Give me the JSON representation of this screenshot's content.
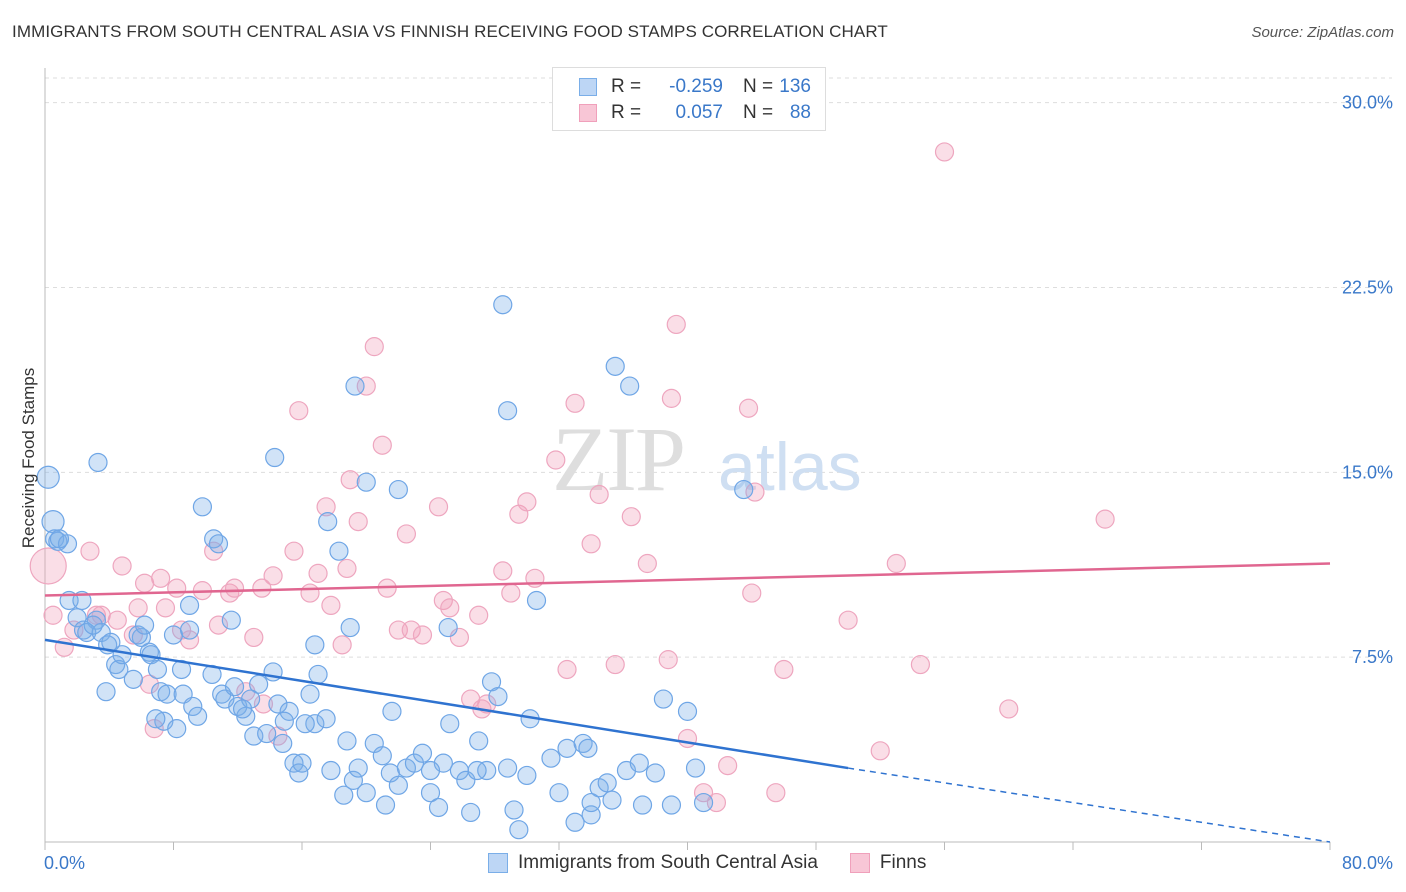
{
  "header": {
    "title": "IMMIGRANTS FROM SOUTH CENTRAL ASIA VS FINNISH RECEIVING FOOD STAMPS CORRELATION CHART",
    "source": "Source: ZipAtlas.com"
  },
  "legend": {
    "blue": {
      "r_label": "R =",
      "r_value": "-0.259",
      "n_label": "N =",
      "n_value": "136"
    },
    "pink": {
      "r_label": "R =",
      "r_value": "0.057",
      "n_label": "N =",
      "n_value": "88"
    }
  },
  "watermark": {
    "zip": "ZIP",
    "atlas": "atlas"
  },
  "colors": {
    "blue": "#7aaee8",
    "blue_line": "#2f73d0",
    "pink": "#f0a0bb",
    "pink_line": "#e06690",
    "tick_label": "#3a78c9"
  },
  "chart_data": {
    "type": "scatter",
    "title": "IMMIGRANTS FROM SOUTH CENTRAL ASIA VS FINNISH RECEIVING FOOD STAMPS CORRELATION CHART",
    "xlabel": "",
    "ylabel": "Receiving Food Stamps",
    "xlim": [
      0,
      80
    ],
    "ylim": [
      0,
      31
    ],
    "x_tick_labels": [
      "0.0%",
      "80.0%"
    ],
    "y_ticks": [
      7.5,
      15.0,
      22.5,
      30.0
    ],
    "y_tick_labels": [
      "7.5%",
      "15.0%",
      "22.5%",
      "30.0%"
    ],
    "grid": "horizontal dashed",
    "legend_position": "top-center",
    "series": [
      {
        "name": "Immigrants from South Central Asia",
        "color": "#7aaee8",
        "trend": {
          "x": [
            0,
            50
          ],
          "y": [
            8.2,
            3.0
          ],
          "dashed_to": [
            80,
            0.0
          ]
        },
        "points": [
          [
            0.2,
            14.8
          ],
          [
            0.5,
            13.0
          ],
          [
            0.6,
            12.3
          ],
          [
            0.8,
            12.2
          ],
          [
            1.4,
            12.1
          ],
          [
            3.3,
            15.4
          ],
          [
            1.5,
            9.8
          ],
          [
            2.0,
            9.1
          ],
          [
            2.3,
            9.8
          ],
          [
            3.2,
            9.0
          ],
          [
            2.4,
            8.6
          ],
          [
            2.6,
            8.5
          ],
          [
            3.5,
            8.5
          ],
          [
            3.9,
            8.0
          ],
          [
            4.1,
            8.1
          ],
          [
            4.4,
            7.2
          ],
          [
            4.6,
            7.0
          ],
          [
            4.8,
            7.6
          ],
          [
            5.5,
            6.6
          ],
          [
            3.8,
            6.1
          ],
          [
            6.0,
            8.3
          ],
          [
            5.8,
            8.4
          ],
          [
            6.2,
            8.8
          ],
          [
            6.5,
            7.7
          ],
          [
            6.6,
            7.6
          ],
          [
            7.0,
            7.0
          ],
          [
            7.2,
            6.1
          ],
          [
            7.4,
            4.9
          ],
          [
            7.6,
            6.0
          ],
          [
            8.2,
            4.6
          ],
          [
            8.0,
            8.4
          ],
          [
            8.5,
            7.0
          ],
          [
            9.0,
            8.6
          ],
          [
            8.6,
            6.0
          ],
          [
            9.2,
            5.5
          ],
          [
            9.5,
            5.1
          ],
          [
            9.8,
            13.6
          ],
          [
            10.5,
            12.3
          ],
          [
            10.4,
            6.8
          ],
          [
            11.0,
            6.0
          ],
          [
            11.2,
            5.8
          ],
          [
            12.0,
            5.5
          ],
          [
            12.5,
            5.1
          ],
          [
            13.0,
            4.3
          ],
          [
            13.3,
            6.4
          ],
          [
            13.8,
            4.4
          ],
          [
            14.2,
            6.9
          ],
          [
            14.5,
            5.6
          ],
          [
            14.8,
            4.0
          ],
          [
            15.2,
            5.3
          ],
          [
            15.5,
            3.2
          ],
          [
            15.8,
            2.8
          ],
          [
            16.0,
            3.2
          ],
          [
            16.5,
            6.0
          ],
          [
            16.8,
            4.8
          ],
          [
            17.0,
            6.8
          ],
          [
            17.5,
            5.0
          ],
          [
            17.8,
            2.9
          ],
          [
            18.3,
            11.8
          ],
          [
            18.8,
            4.1
          ],
          [
            19.2,
            2.5
          ],
          [
            19.5,
            3.0
          ],
          [
            20.0,
            2.0
          ],
          [
            20.5,
            4.0
          ],
          [
            21.0,
            3.5
          ],
          [
            21.2,
            1.5
          ],
          [
            21.5,
            2.8
          ],
          [
            22.0,
            2.3
          ],
          [
            22.5,
            3.0
          ],
          [
            23.0,
            3.2
          ],
          [
            23.5,
            3.6
          ],
          [
            24.0,
            2.0
          ],
          [
            24.5,
            1.4
          ],
          [
            24.8,
            3.2
          ],
          [
            25.2,
            4.8
          ],
          [
            25.8,
            2.9
          ],
          [
            26.2,
            2.5
          ],
          [
            26.5,
            1.2
          ],
          [
            27.0,
            4.1
          ],
          [
            27.5,
            2.9
          ],
          [
            27.8,
            6.5
          ],
          [
            28.2,
            5.9
          ],
          [
            28.8,
            3.0
          ],
          [
            29.2,
            1.3
          ],
          [
            29.5,
            0.5
          ],
          [
            30.0,
            2.7
          ],
          [
            30.2,
            5.0
          ],
          [
            30.6,
            9.8
          ],
          [
            31.5,
            3.4
          ],
          [
            32.0,
            2.0
          ],
          [
            32.5,
            3.8
          ],
          [
            33.0,
            0.8
          ],
          [
            33.5,
            4.0
          ],
          [
            34.0,
            1.1
          ],
          [
            34.5,
            2.2
          ],
          [
            35.0,
            2.4
          ],
          [
            35.3,
            1.7
          ],
          [
            36.2,
            2.9
          ],
          [
            37.0,
            3.2
          ],
          [
            37.2,
            1.5
          ],
          [
            38.0,
            2.8
          ],
          [
            38.5,
            5.8
          ],
          [
            39.0,
            1.5
          ],
          [
            40.0,
            5.3
          ],
          [
            40.5,
            3.0
          ],
          [
            41.0,
            1.6
          ],
          [
            33.8,
            3.8
          ],
          [
            11.8,
            6.3
          ],
          [
            12.8,
            5.8
          ],
          [
            10.8,
            12.1
          ],
          [
            14.3,
            15.6
          ],
          [
            17.6,
            13.0
          ],
          [
            19.3,
            18.5
          ],
          [
            20.0,
            14.6
          ],
          [
            22.0,
            14.3
          ],
          [
            25.1,
            8.7
          ],
          [
            28.5,
            21.8
          ],
          [
            28.8,
            17.5
          ],
          [
            35.5,
            19.3
          ],
          [
            36.4,
            18.5
          ],
          [
            43.5,
            14.3
          ],
          [
            0.9,
            12.3
          ],
          [
            3.0,
            8.8
          ],
          [
            9.0,
            9.6
          ],
          [
            11.6,
            9.0
          ],
          [
            16.8,
            8.0
          ],
          [
            19.0,
            8.7
          ],
          [
            12.3,
            5.4
          ],
          [
            6.9,
            5.0
          ],
          [
            18.6,
            1.9
          ],
          [
            21.6,
            5.3
          ],
          [
            16.2,
            4.8
          ],
          [
            14.9,
            4.9
          ],
          [
            26.9,
            2.9
          ],
          [
            24.0,
            2.9
          ],
          [
            34.0,
            1.6
          ]
        ]
      },
      {
        "name": "Finns",
        "color": "#f0a0bb",
        "trend": {
          "x": [
            0,
            80
          ],
          "y": [
            10.0,
            11.3
          ]
        },
        "points": [
          [
            0.2,
            11.2
          ],
          [
            0.5,
            9.2
          ],
          [
            1.2,
            7.9
          ],
          [
            2.8,
            11.8
          ],
          [
            3.2,
            9.2
          ],
          [
            3.5,
            9.2
          ],
          [
            4.5,
            9.0
          ],
          [
            4.8,
            11.2
          ],
          [
            5.5,
            8.4
          ],
          [
            5.8,
            9.5
          ],
          [
            6.2,
            10.5
          ],
          [
            6.5,
            6.4
          ],
          [
            7.2,
            10.7
          ],
          [
            7.5,
            9.5
          ],
          [
            8.2,
            10.3
          ],
          [
            8.5,
            8.6
          ],
          [
            9.0,
            8.2
          ],
          [
            9.8,
            10.2
          ],
          [
            10.5,
            11.8
          ],
          [
            10.8,
            8.8
          ],
          [
            11.5,
            10.1
          ],
          [
            11.8,
            10.3
          ],
          [
            12.5,
            6.1
          ],
          [
            13.0,
            8.3
          ],
          [
            13.5,
            10.3
          ],
          [
            14.2,
            10.8
          ],
          [
            14.5,
            4.3
          ],
          [
            15.5,
            11.8
          ],
          [
            15.8,
            17.5
          ],
          [
            16.5,
            10.1
          ],
          [
            17.0,
            10.9
          ],
          [
            17.5,
            13.6
          ],
          [
            17.8,
            9.6
          ],
          [
            18.5,
            8.0
          ],
          [
            18.8,
            11.1
          ],
          [
            19.0,
            14.7
          ],
          [
            19.5,
            13.0
          ],
          [
            20.0,
            18.5
          ],
          [
            20.5,
            20.1
          ],
          [
            21.0,
            16.1
          ],
          [
            21.3,
            10.3
          ],
          [
            22.0,
            8.6
          ],
          [
            22.5,
            12.5
          ],
          [
            22.8,
            8.6
          ],
          [
            23.5,
            8.4
          ],
          [
            24.5,
            13.6
          ],
          [
            24.8,
            9.8
          ],
          [
            25.2,
            9.5
          ],
          [
            25.8,
            8.3
          ],
          [
            26.5,
            5.8
          ],
          [
            27.0,
            9.2
          ],
          [
            27.5,
            5.6
          ],
          [
            28.5,
            11.0
          ],
          [
            29.0,
            10.1
          ],
          [
            29.5,
            13.3
          ],
          [
            30.0,
            13.8
          ],
          [
            30.5,
            10.7
          ],
          [
            31.8,
            15.5
          ],
          [
            32.5,
            7.0
          ],
          [
            33.0,
            17.8
          ],
          [
            34.0,
            12.1
          ],
          [
            34.5,
            14.1
          ],
          [
            35.5,
            7.2
          ],
          [
            36.5,
            13.2
          ],
          [
            37.5,
            11.3
          ],
          [
            38.8,
            7.4
          ],
          [
            39.0,
            18.0
          ],
          [
            39.3,
            21.0
          ],
          [
            40.0,
            4.2
          ],
          [
            41.0,
            2.0
          ],
          [
            41.8,
            1.6
          ],
          [
            42.5,
            3.1
          ],
          [
            43.8,
            17.6
          ],
          [
            44.0,
            10.1
          ],
          [
            45.5,
            2.0
          ],
          [
            50.0,
            9.0
          ],
          [
            52.0,
            3.7
          ],
          [
            53.0,
            11.3
          ],
          [
            54.5,
            7.2
          ],
          [
            56.0,
            28.0
          ],
          [
            60.0,
            5.4
          ],
          [
            66.0,
            13.1
          ],
          [
            44.2,
            14.2
          ],
          [
            27.2,
            5.4
          ],
          [
            13.6,
            5.6
          ],
          [
            6.8,
            4.6
          ],
          [
            1.8,
            8.6
          ],
          [
            46.0,
            7.0
          ]
        ]
      }
    ]
  }
}
